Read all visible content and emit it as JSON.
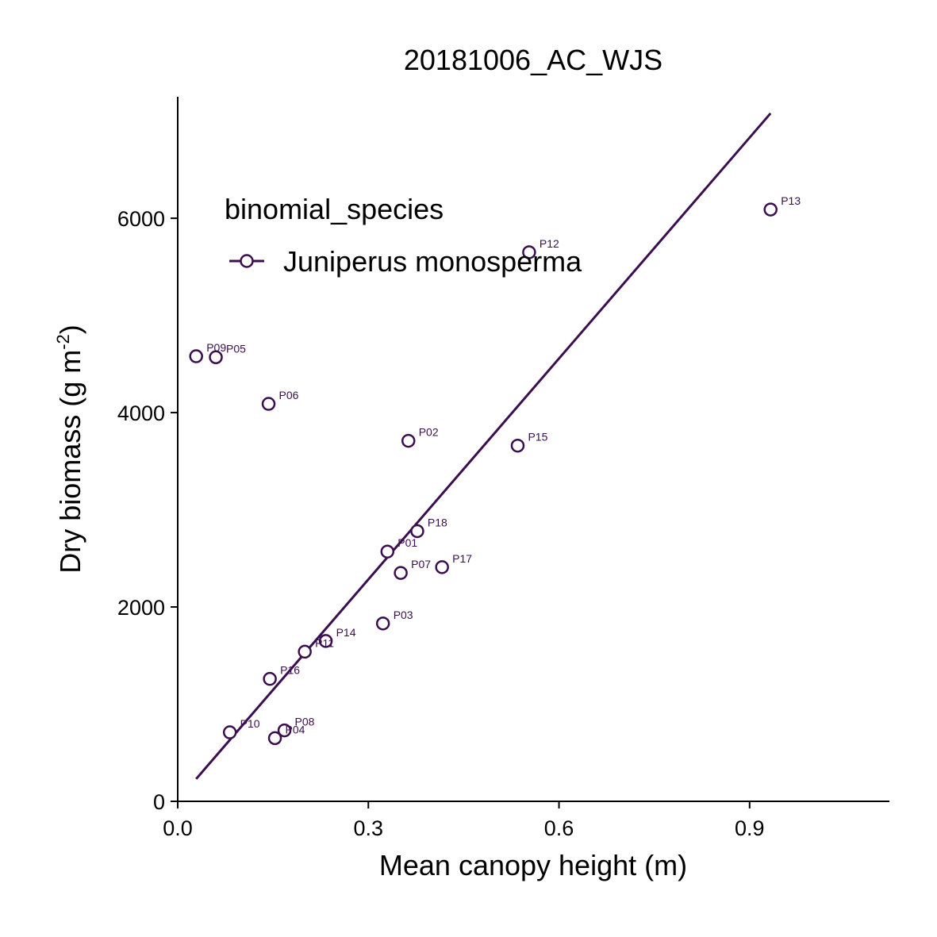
{
  "chart_data": {
    "type": "scatter",
    "title": "20181006_AC_WJS",
    "xlabel": "Mean canopy height (m)",
    "ylabel_main": "Dry biomass (g m",
    "ylabel_sup": "-2",
    "ylabel_close": ")",
    "xlim": [
      0,
      1.12
    ],
    "ylim": [
      0,
      7250
    ],
    "x_ticks": [
      0.0,
      0.3,
      0.6,
      0.9
    ],
    "x_tick_labels": [
      "0.0",
      "0.3",
      "0.6",
      "0.9"
    ],
    "y_ticks": [
      0,
      2000,
      4000,
      6000
    ],
    "y_tick_labels": [
      "0",
      "2000",
      "4000",
      "6000"
    ],
    "grid": false,
    "color": "#3b0f4f",
    "legend": {
      "title": "binomial_species",
      "entries": [
        "Juniperus monosperma"
      ],
      "placement": "top-left"
    },
    "series": [
      {
        "name": "Juniperus monosperma",
        "points": [
          {
            "label": "P01",
            "x": 0.33,
            "y": 2570
          },
          {
            "label": "P02",
            "x": 0.363,
            "y": 3710
          },
          {
            "label": "P03",
            "x": 0.323,
            "y": 1830
          },
          {
            "label": "P04",
            "x": 0.153,
            "y": 650
          },
          {
            "label": "P05",
            "x": 0.06,
            "y": 4570
          },
          {
            "label": "P06",
            "x": 0.143,
            "y": 4090
          },
          {
            "label": "P07",
            "x": 0.351,
            "y": 2350
          },
          {
            "label": "P08",
            "x": 0.168,
            "y": 730
          },
          {
            "label": "P09",
            "x": 0.029,
            "y": 4580
          },
          {
            "label": "P10",
            "x": 0.082,
            "y": 710
          },
          {
            "label": "P11",
            "x": 0.2,
            "y": 1540
          },
          {
            "label": "P12",
            "x": 0.553,
            "y": 5650
          },
          {
            "label": "P13",
            "x": 0.933,
            "y": 6090
          },
          {
            "label": "P14",
            "x": 0.233,
            "y": 1650
          },
          {
            "label": "P15",
            "x": 0.535,
            "y": 3660
          },
          {
            "label": "P16",
            "x": 0.145,
            "y": 1260
          },
          {
            "label": "P17",
            "x": 0.416,
            "y": 2410
          },
          {
            "label": "P18",
            "x": 0.377,
            "y": 2780
          }
        ],
        "fit_line": {
          "x": [
            0.029,
            0.933
          ],
          "y": [
            230,
            7080
          ]
        }
      }
    ]
  }
}
